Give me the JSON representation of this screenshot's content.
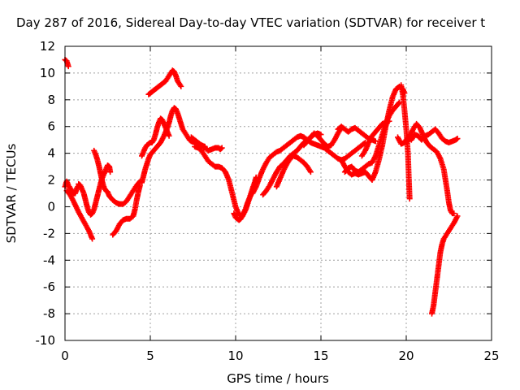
{
  "chart_data": {
    "type": "scatter",
    "title": "Day 287 of 2016, Sidereal Day-to-day VTEC variation (SDTVAR) for receiver t",
    "xlabel": "GPS time / hours",
    "ylabel": "SDTVAR / TECUs",
    "xlim": [
      0,
      25
    ],
    "ylim": [
      -10,
      12
    ],
    "xticks": [
      "0",
      "5",
      "10",
      "15",
      "20",
      "25"
    ],
    "yticks": [
      "12",
      "10",
      "8",
      "6",
      "4",
      "2",
      "0",
      "-2",
      "-4",
      "-6",
      "-8",
      "-10"
    ],
    "xtick_values": [
      0,
      5,
      10,
      15,
      20,
      25
    ],
    "ytick_values": [
      12,
      10,
      8,
      6,
      4,
      2,
      0,
      -2,
      -4,
      -6,
      -8,
      -10
    ],
    "grid": true,
    "marker": "plus",
    "color": "#ff0000",
    "series": [
      {
        "x": [
          0.0,
          0.1,
          0.2
        ],
        "y": [
          11.0,
          10.9,
          10.5
        ]
      },
      {
        "x": [
          0.0,
          0.1,
          0.2,
          0.3,
          0.4,
          0.5,
          0.6,
          0.7,
          0.8
        ],
        "y": [
          1.5,
          1.9,
          1.6,
          1.4,
          1.2,
          1.0,
          1.0,
          1.4,
          1.6
        ]
      },
      {
        "x": [
          0.1,
          0.3,
          0.5,
          0.8,
          1.1,
          1.4,
          1.6
        ],
        "y": [
          1.2,
          0.9,
          0.4,
          -0.4,
          -1.1,
          -1.8,
          -2.4
        ]
      },
      {
        "x": [
          0.8,
          0.9,
          1.0,
          1.1,
          1.2,
          1.3,
          1.4,
          1.5,
          1.6,
          1.7,
          1.8,
          1.9,
          2.0,
          2.1,
          2.2,
          2.3,
          2.4,
          2.5,
          2.6,
          2.65
        ],
        "y": [
          1.7,
          1.6,
          1.3,
          1.0,
          0.5,
          0.0,
          -0.4,
          -0.6,
          -0.5,
          -0.2,
          0.3,
          0.8,
          1.3,
          1.8,
          2.2,
          2.5,
          2.8,
          3.1,
          3.0,
          2.6
        ]
      },
      {
        "x": [
          1.7,
          1.8,
          1.9,
          2.0,
          2.1,
          2.2,
          2.3,
          2.4,
          2.5,
          2.6,
          2.8,
          3.0,
          3.2,
          3.4,
          3.6,
          3.8,
          4.0,
          4.2,
          4.4
        ],
        "y": [
          4.2,
          3.9,
          3.5,
          3.0,
          2.4,
          1.8,
          1.4,
          1.2,
          1.1,
          0.8,
          0.5,
          0.3,
          0.2,
          0.2,
          0.4,
          0.8,
          1.2,
          1.6,
          1.9
        ]
      },
      {
        "x": [
          2.8,
          3.0,
          3.2,
          3.4,
          3.6,
          3.8,
          4.0,
          4.1,
          4.2,
          4.3,
          4.4
        ],
        "y": [
          -2.1,
          -1.8,
          -1.3,
          -1.0,
          -0.9,
          -0.9,
          -0.7,
          -0.2,
          0.5,
          1.1,
          1.6
        ]
      },
      {
        "x": [
          4.5,
          4.6,
          4.7,
          4.8,
          4.9,
          5.0,
          5.2,
          5.4,
          5.6,
          5.8,
          6.0,
          6.1,
          6.2,
          6.3,
          6.4,
          6.5,
          6.6,
          6.7,
          6.8,
          6.9,
          7.0,
          7.1,
          7.2,
          7.3,
          7.4,
          7.6,
          7.8,
          8.0,
          8.2
        ],
        "y": [
          1.8,
          2.3,
          2.8,
          3.2,
          3.6,
          3.9,
          4.2,
          4.5,
          4.8,
          5.3,
          5.9,
          6.3,
          6.8,
          7.2,
          7.4,
          7.3,
          7.0,
          6.6,
          6.2,
          5.8,
          5.6,
          5.4,
          5.2,
          5.0,
          4.9,
          4.8,
          4.7,
          4.6,
          4.5
        ]
      },
      {
        "x": [
          4.5,
          4.6,
          4.7,
          4.8,
          4.9,
          5.0,
          5.1,
          5.2,
          5.3,
          5.4,
          5.5,
          5.6,
          5.7,
          5.8,
          5.9,
          6.0,
          6.1
        ],
        "y": [
          3.8,
          4.1,
          4.4,
          4.6,
          4.7,
          4.8,
          4.8,
          5.0,
          5.4,
          5.9,
          6.3,
          6.6,
          6.5,
          6.2,
          5.9,
          5.6,
          5.3
        ]
      },
      {
        "x": [
          4.9,
          5.0,
          5.1,
          5.2,
          5.3,
          5.4,
          5.5,
          5.6,
          5.7,
          5.8,
          5.9,
          6.0,
          6.1,
          6.2,
          6.3,
          6.4,
          6.5,
          6.6,
          6.7,
          6.8
        ],
        "y": [
          8.4,
          8.5,
          8.6,
          8.7,
          8.8,
          8.9,
          9.0,
          9.1,
          9.2,
          9.3,
          9.4,
          9.6,
          9.8,
          10.0,
          10.2,
          10.1,
          9.8,
          9.4,
          9.2,
          9.0
        ]
      },
      {
        "x": [
          7.4,
          7.6,
          7.8,
          8.0,
          8.2,
          8.4,
          8.6,
          8.8,
          9.0,
          9.1,
          9.2
        ],
        "y": [
          5.2,
          5.0,
          4.8,
          4.6,
          4.4,
          4.2,
          4.3,
          4.4,
          4.4,
          4.3,
          4.4
        ]
      },
      {
        "x": [
          7.6,
          7.8,
          8.0,
          8.2,
          8.4,
          8.6,
          8.8,
          9.0,
          9.2,
          9.4,
          9.6,
          9.8,
          10.0,
          10.2,
          10.4,
          10.6,
          10.8,
          11.0,
          11.2
        ],
        "y": [
          4.5,
          4.4,
          4.2,
          3.8,
          3.4,
          3.2,
          3.0,
          3.0,
          2.9,
          2.6,
          2.0,
          1.0,
          0.0,
          -0.6,
          -0.7,
          -0.2,
          0.6,
          1.4,
          2.1
        ]
      },
      {
        "x": [
          9.9,
          10.0,
          10.1,
          10.2,
          10.3,
          10.4,
          10.5,
          10.6,
          10.7,
          10.8,
          10.9,
          11.0,
          11.1,
          11.2
        ],
        "y": [
          -0.5,
          -0.8,
          -0.9,
          -1.0,
          -0.9,
          -0.7,
          -0.4,
          -0.1,
          0.3,
          0.6,
          0.9,
          1.2,
          1.6,
          2.2
        ]
      },
      {
        "x": [
          11.0,
          11.2,
          11.4,
          11.6,
          11.8,
          12.0,
          12.2,
          12.4,
          12.6,
          12.8,
          13.0,
          13.2,
          13.4,
          13.6,
          13.8,
          14.0,
          14.2,
          14.4,
          14.6,
          14.8,
          15.0,
          15.2,
          15.4,
          15.6,
          15.8,
          16.0,
          16.2,
          16.4,
          16.6,
          16.8,
          17.0,
          17.2,
          17.4,
          17.6
        ],
        "y": [
          1.0,
          1.5,
          2.2,
          2.8,
          3.3,
          3.7,
          3.9,
          4.1,
          4.2,
          4.4,
          4.6,
          4.8,
          5.0,
          5.2,
          5.3,
          5.2,
          5.0,
          4.8,
          4.7,
          4.6,
          4.5,
          4.4,
          4.2,
          4.0,
          3.8,
          3.6,
          3.5,
          3.6,
          3.8,
          4.0,
          4.2,
          4.4,
          4.6,
          4.8
        ]
      },
      {
        "x": [
          11.6,
          11.8,
          12.0,
          12.2,
          12.4,
          12.6,
          12.8,
          13.0,
          13.2,
          13.4,
          13.6,
          13.8,
          14.0,
          14.2,
          14.4,
          14.6,
          14.8,
          15.0
        ],
        "y": [
          0.9,
          1.2,
          1.6,
          2.1,
          2.6,
          3.0,
          3.2,
          3.5,
          3.8,
          4.0,
          4.2,
          4.5,
          4.8,
          5.0,
          5.2,
          5.4,
          5.5,
          5.4
        ]
      },
      {
        "x": [
          12.4,
          12.6,
          12.8,
          13.0,
          13.2,
          13.4,
          13.6,
          13.8,
          14.0,
          14.2,
          14.4
        ],
        "y": [
          1.5,
          2.1,
          2.7,
          3.2,
          3.6,
          3.8,
          3.7,
          3.5,
          3.3,
          3.0,
          2.6
        ]
      },
      {
        "x": [
          14.0,
          14.2,
          14.4,
          14.6,
          14.8,
          15.0,
          15.2,
          15.4,
          15.6,
          15.8,
          16.0,
          16.2
        ],
        "y": [
          4.6,
          4.9,
          5.2,
          5.5,
          5.3,
          5.0,
          4.7,
          4.5,
          4.6,
          5.0,
          5.5,
          5.9
        ]
      },
      {
        "x": [
          16.0,
          16.2,
          16.4,
          16.6,
          16.8,
          17.0,
          17.2,
          17.4,
          17.6,
          17.8,
          18.0,
          18.2
        ],
        "y": [
          5.8,
          6.0,
          5.8,
          5.6,
          5.8,
          5.9,
          5.7,
          5.5,
          5.3,
          5.1,
          5.0,
          4.9
        ]
      },
      {
        "x": [
          16.2,
          16.4,
          16.6,
          16.8,
          17.0,
          17.2,
          17.4,
          17.6,
          17.8,
          18.0,
          18.2,
          18.4,
          18.6,
          18.8,
          19.0,
          19.2,
          19.4,
          19.6,
          19.8,
          19.9
        ],
        "y": [
          3.5,
          3.0,
          2.6,
          2.4,
          2.5,
          2.4,
          2.5,
          2.6,
          2.3,
          2.0,
          2.6,
          3.5,
          4.6,
          6.0,
          7.2,
          8.2,
          8.8,
          9.0,
          8.8,
          8.5
        ]
      },
      {
        "x": [
          16.4,
          16.6,
          16.8,
          17.0,
          17.2,
          17.4,
          17.6,
          17.8,
          18.0,
          18.2,
          18.4,
          18.6,
          18.8,
          19.0,
          19.2,
          19.4,
          19.6
        ],
        "y": [
          2.6,
          2.9,
          3.0,
          2.7,
          2.6,
          2.8,
          3.0,
          3.2,
          3.3,
          3.8,
          4.6,
          5.4,
          6.2,
          6.8,
          7.2,
          7.5,
          7.8
        ]
      },
      {
        "x": [
          17.4,
          17.6,
          17.8,
          18.0,
          18.2,
          18.4,
          18.6,
          18.8,
          19.0
        ],
        "y": [
          3.8,
          4.2,
          4.8,
          5.3,
          5.6,
          5.9,
          6.2,
          6.3,
          6.4
        ]
      },
      {
        "x": [
          19.7,
          19.8,
          19.9,
          20.0,
          20.1,
          20.15,
          20.2
        ],
        "y": [
          9.1,
          8.4,
          7.2,
          5.8,
          4.0,
          2.2,
          0.6
        ]
      },
      {
        "x": [
          19.5,
          19.7,
          19.9,
          20.1,
          20.3,
          20.5,
          20.7,
          20.9,
          21.1,
          21.3,
          21.5,
          21.7,
          21.9,
          22.1,
          22.3,
          22.5,
          22.7,
          22.9,
          23.0
        ],
        "y": [
          5.2,
          4.7,
          4.8,
          5.2,
          5.0,
          5.4,
          5.3,
          5.0,
          5.3,
          5.4,
          5.6,
          5.8,
          5.5,
          5.1,
          4.9,
          4.8,
          4.9,
          5.0,
          5.1
        ]
      },
      {
        "x": [
          20.0,
          20.2,
          20.4,
          20.6,
          20.8,
          21.0,
          21.2,
          21.4,
          21.6,
          21.8,
          22.0,
          22.2,
          22.3,
          22.4,
          22.5,
          22.6,
          22.7,
          22.8
        ],
        "y": [
          4.8,
          5.2,
          5.8,
          6.2,
          5.9,
          5.3,
          4.8,
          4.5,
          4.3,
          4.1,
          3.6,
          2.8,
          2.0,
          1.2,
          0.3,
          -0.3,
          -0.5,
          -0.5
        ]
      },
      {
        "x": [
          21.5,
          21.6,
          21.7,
          21.8,
          21.9,
          22.0,
          22.1,
          22.2,
          22.4,
          22.6,
          22.8,
          23.0
        ],
        "y": [
          -8.0,
          -7.4,
          -6.4,
          -5.4,
          -4.4,
          -3.4,
          -2.8,
          -2.4,
          -2.0,
          -1.6,
          -1.2,
          -0.7
        ]
      }
    ]
  }
}
